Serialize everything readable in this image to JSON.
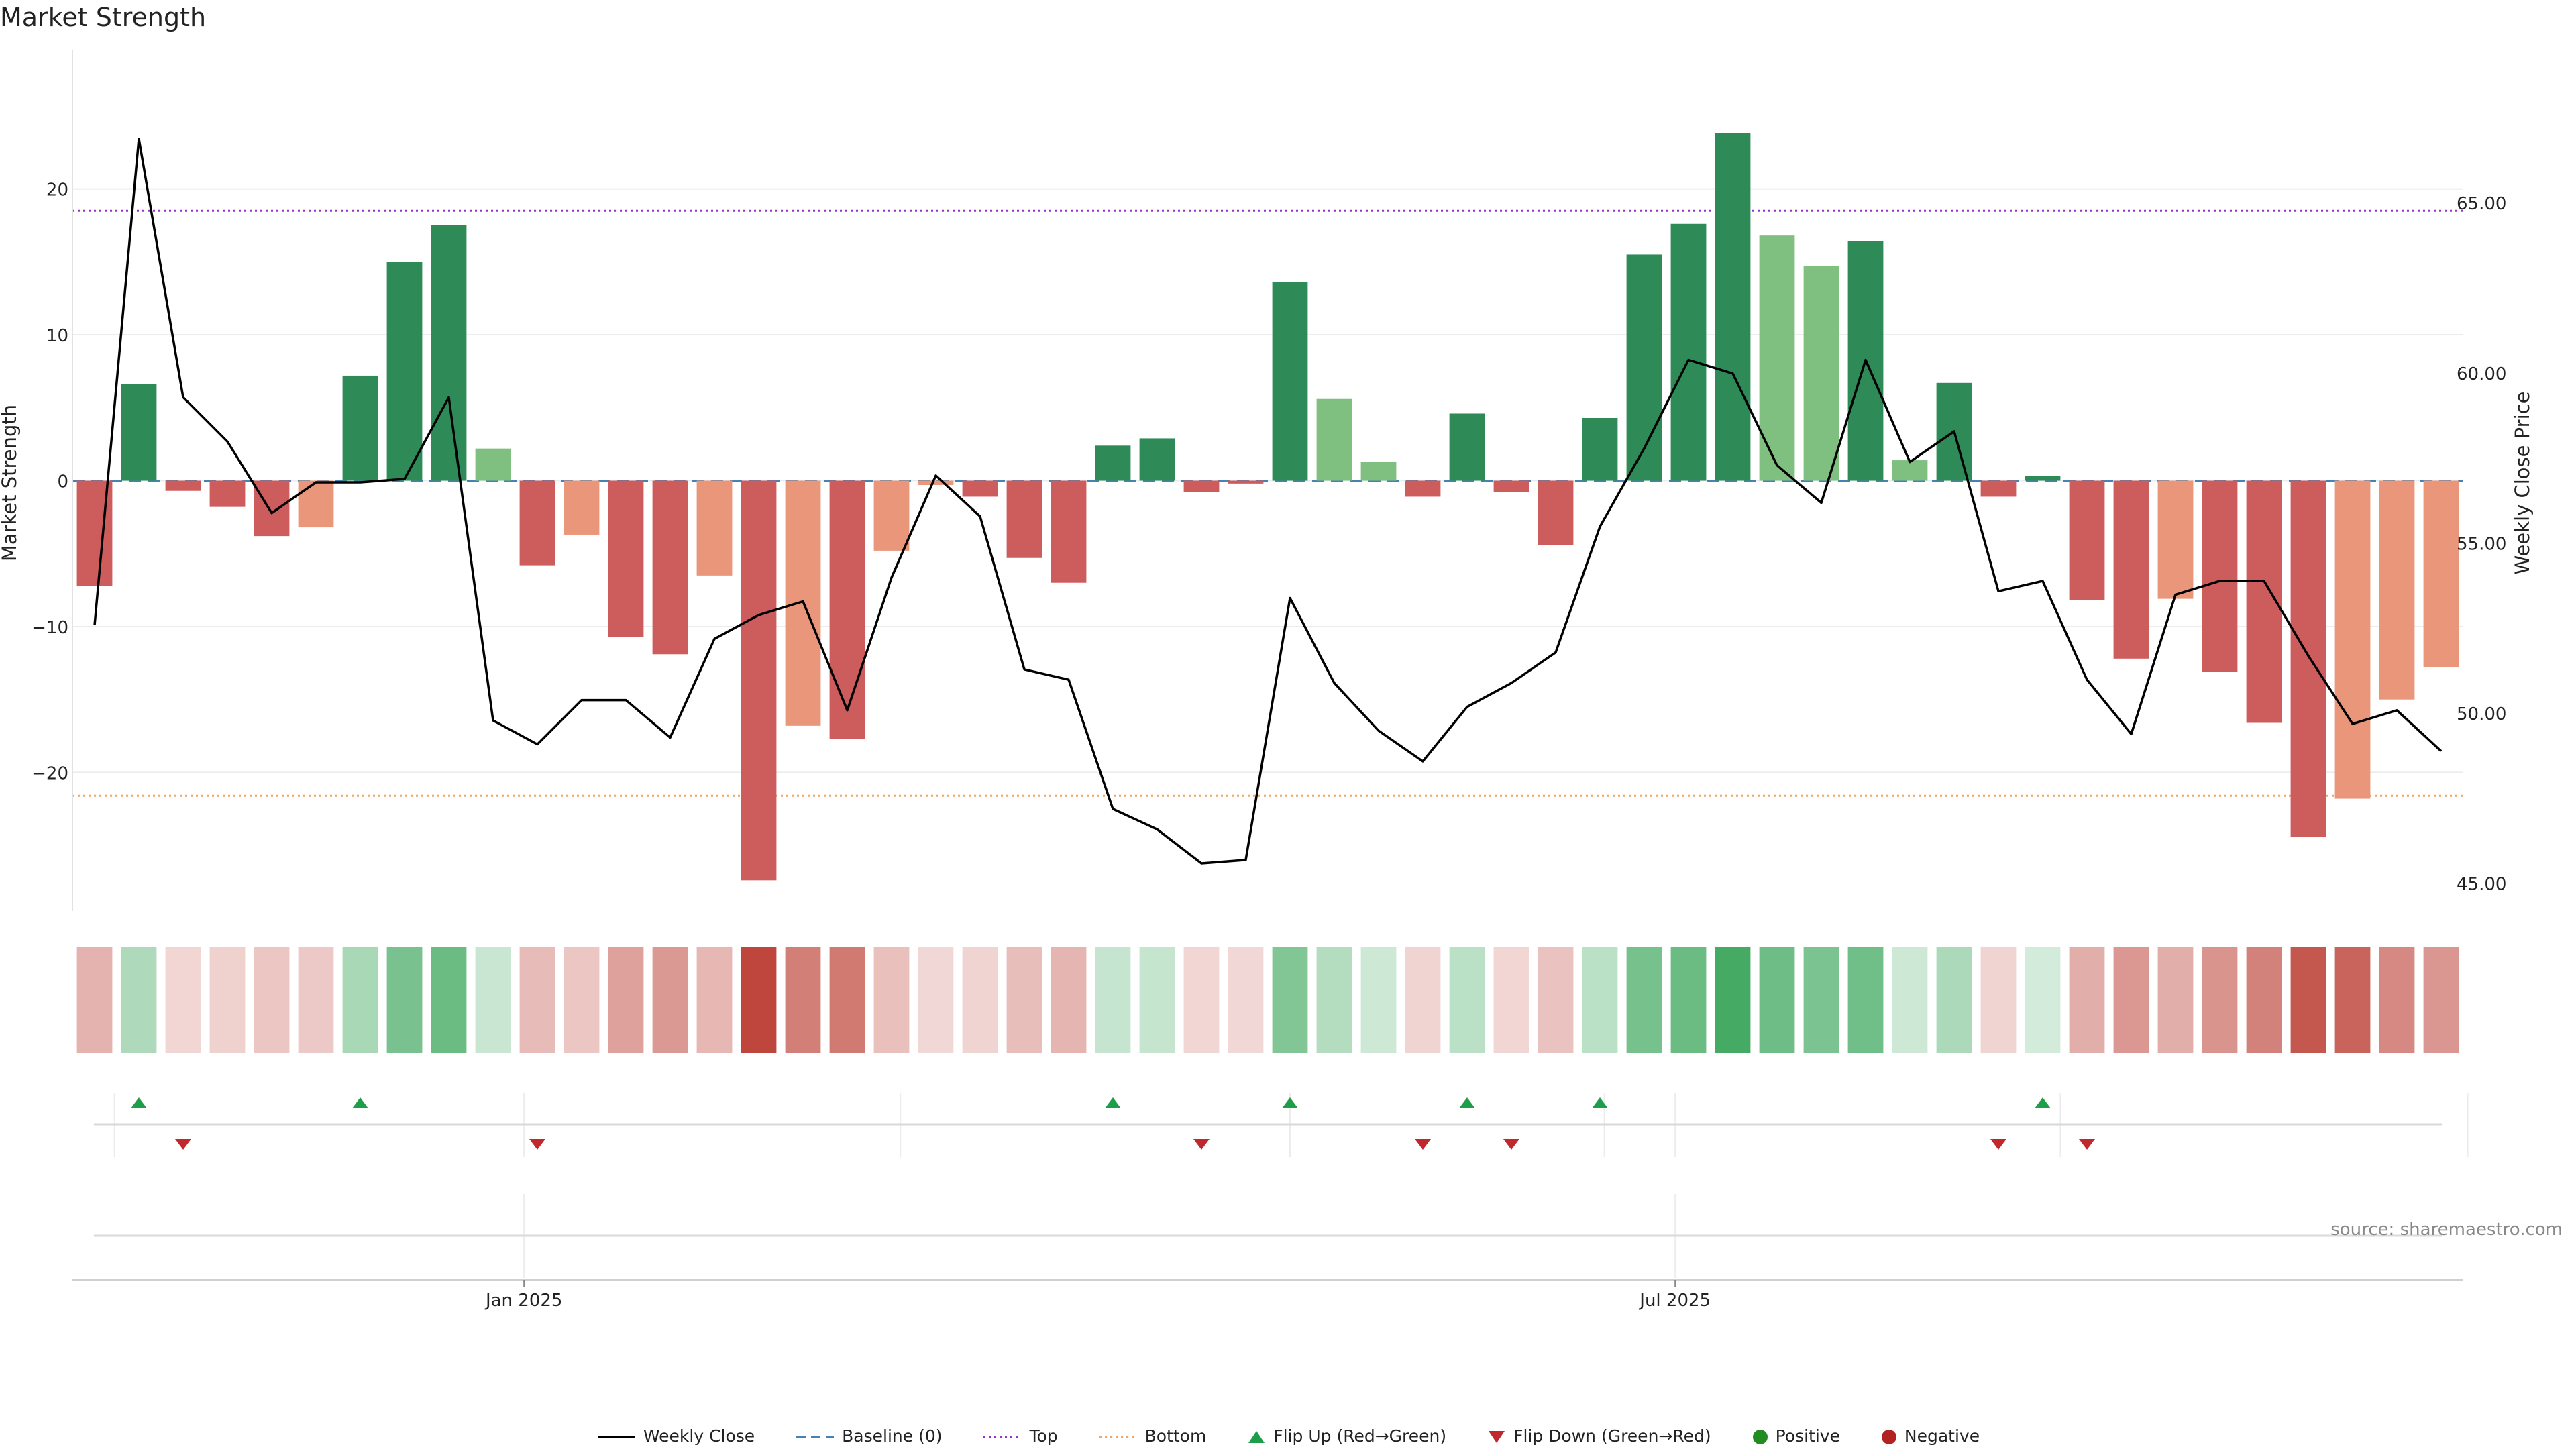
{
  "title": "Market Strength",
  "source": "source: sharemaestro.com",
  "chart_data": {
    "type": "bar",
    "ylabel_left": "Market Strength",
    "ylabel_right": "Weekly Close Price",
    "left_ticks": [
      20,
      10,
      0,
      -10,
      -20
    ],
    "left_tick_labels": [
      "20",
      "10",
      "0",
      "−10",
      "−20"
    ],
    "right_ticks": [
      65,
      60,
      55,
      50,
      45
    ],
    "right_tick_labels": [
      "65.00",
      "60.00",
      "55.00",
      "50.00",
      "45.00"
    ],
    "left_ylim": [
      -29.5,
      29.5
    ],
    "right_ylim": [
      44.2,
      69.5
    ],
    "x_tick_labels": [
      "Jan 2025",
      "Jul 2025"
    ],
    "x_tick_index": [
      9.7,
      35.7
    ],
    "top_line": 18.5,
    "bottom_line": -21.6,
    "baseline": 0,
    "grid": true,
    "legend_position": "bottom-center",
    "strength": [
      -7.2,
      6.6,
      -0.7,
      -1.8,
      -3.8,
      -3.2,
      7.2,
      15.0,
      17.5,
      2.2,
      -5.8,
      -3.7,
      -10.7,
      -11.9,
      -6.5,
      -27.4,
      -16.8,
      -17.7,
      -4.8,
      -0.3,
      -1.1,
      -5.3,
      -7.0,
      2.4,
      2.9,
      -0.8,
      -0.2,
      13.6,
      5.6,
      1.3,
      -1.1,
      4.6,
      -0.8,
      -4.4,
      4.3,
      15.5,
      17.6,
      23.8,
      16.8,
      14.7,
      16.4,
      1.4,
      6.7,
      -1.1,
      0.3,
      -8.2,
      -12.2,
      -8.1,
      -13.1,
      -16.6,
      -24.4,
      -21.8,
      -15.0,
      -12.8
    ],
    "shade": [
      "dark",
      "dark",
      "dark",
      "dark",
      "dark",
      "light",
      "dark",
      "dark",
      "dark",
      "light",
      "dark",
      "light",
      "dark",
      "dark",
      "light",
      "dark",
      "light",
      "dark",
      "light",
      "light",
      "dark",
      "dark",
      "dark",
      "dark",
      "dark",
      "dark",
      "dark",
      "dark",
      "light",
      "light",
      "dark",
      "dark",
      "dark",
      "dark",
      "dark",
      "dark",
      "dark",
      "dark",
      "light",
      "light",
      "dark",
      "light",
      "dark",
      "dark",
      "dark",
      "dark",
      "dark",
      "light",
      "dark",
      "dark",
      "dark",
      "light",
      "light",
      "light"
    ],
    "weekly_close": [
      52.6,
      66.9,
      59.3,
      58.0,
      55.9,
      56.8,
      56.8,
      56.9,
      59.3,
      49.8,
      49.1,
      50.4,
      50.4,
      49.3,
      52.2,
      52.9,
      53.3,
      50.1,
      54.0,
      57.0,
      55.8,
      51.3,
      51.0,
      47.2,
      46.6,
      45.6,
      45.7,
      53.4,
      50.9,
      49.5,
      48.6,
      50.2,
      50.9,
      51.8,
      55.5,
      57.8,
      60.4,
      60.0,
      57.3,
      56.2,
      60.4,
      57.4,
      58.3,
      53.6,
      53.9,
      51.0,
      49.4,
      53.5,
      53.9,
      53.9,
      51.7,
      49.7,
      50.1,
      48.9
    ],
    "heat_strip": "strength intensity per week",
    "flip_up_index": [
      1,
      6,
      23,
      27,
      31,
      34,
      44
    ],
    "flip_down_index": [
      2,
      10,
      25,
      30,
      32,
      43,
      45
    ],
    "legend": [
      {
        "label": "Weekly Close",
        "symbol": "line"
      },
      {
        "label": "Baseline (0)",
        "symbol": "dash"
      },
      {
        "label": "Top",
        "symbol": "dot-purple"
      },
      {
        "label": "Bottom",
        "symbol": "dot-orange"
      },
      {
        "label": "Flip Up (Red→Green)",
        "symbol": "triangle-up"
      },
      {
        "label": "Flip Down (Green→Red)",
        "symbol": "triangle-down"
      },
      {
        "label": "Positive",
        "symbol": "circle-green"
      },
      {
        "label": "Negative",
        "symbol": "circle-red"
      }
    ]
  },
  "colors": {
    "pos_dark": "#2e8b57",
    "pos_light": "#7fbf7f",
    "neg_dark": "#cd5c5c",
    "neg_light": "#e9967a",
    "line": "#000000",
    "baseline": "#4682b4",
    "top": "#9932cc",
    "bottom": "#f4a460",
    "flip_up": "#1e9e4a",
    "flip_down": "#c0282d",
    "positive": "#228b22",
    "negative": "#b22222"
  }
}
